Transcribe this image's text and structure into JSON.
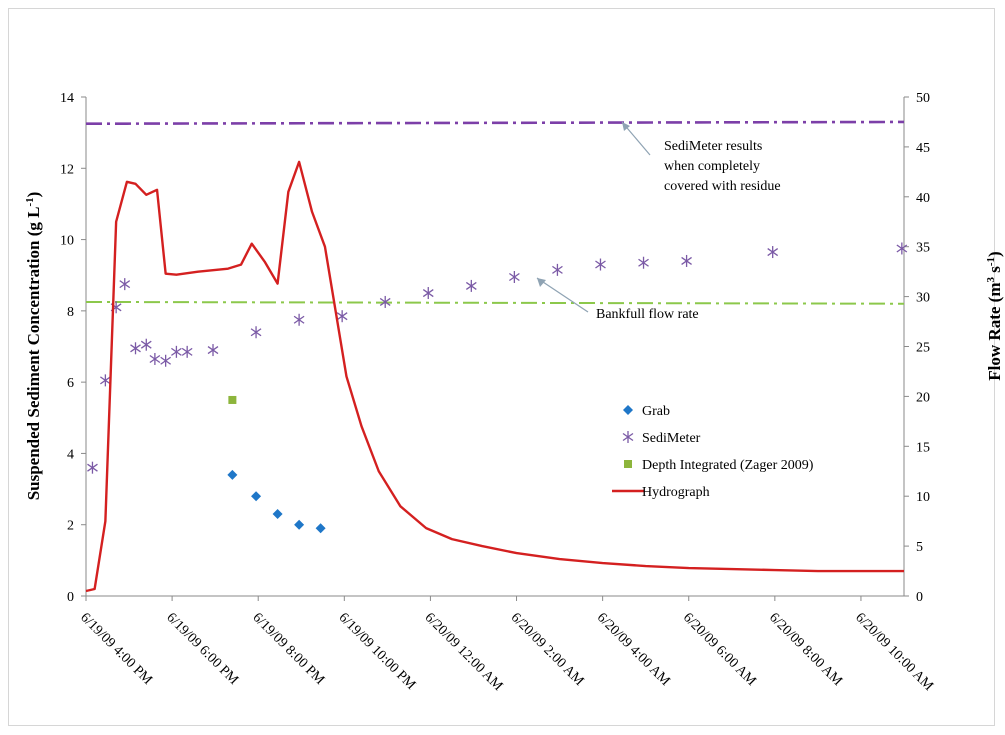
{
  "chart_data": {
    "type": "line",
    "xlabel": "",
    "y_left_label": "Suspended Sediment Concentration (g L⁻¹)",
    "y_right_label": "Flow Rate (m³ s⁻¹)",
    "ylim_left": [
      0,
      14
    ],
    "ylim_right": [
      0,
      50
    ],
    "y_left_ticks": [
      0,
      2,
      4,
      6,
      8,
      10,
      12,
      14
    ],
    "y_right_ticks": [
      0,
      5,
      10,
      15,
      20,
      25,
      30,
      35,
      40,
      45,
      50
    ],
    "x_range_hours": [
      16,
      35
    ],
    "x_ticks": [
      {
        "h": 16,
        "label": "6/19/09 4:00 PM"
      },
      {
        "h": 18,
        "label": "6/19/09 6:00 PM"
      },
      {
        "h": 20,
        "label": "6/19/09 8:00 PM"
      },
      {
        "h": 22,
        "label": "6/19/09 10:00 PM"
      },
      {
        "h": 24,
        "label": "6/20/09 12:00 AM"
      },
      {
        "h": 26,
        "label": "6/20/09 2:00 AM"
      },
      {
        "h": 28,
        "label": "6/20/09 4:00 AM"
      },
      {
        "h": 30,
        "label": "6/20/09 6:00 AM"
      },
      {
        "h": 32,
        "label": "6/20/09 8:00 AM"
      },
      {
        "h": 34,
        "label": "6/20/09 10:00 AM"
      }
    ],
    "grid": false,
    "legend_position": "right-center",
    "series": [
      {
        "name": "Grab",
        "marker": "diamond",
        "axis": "left",
        "color": "#1f77c8",
        "points": [
          [
            19.4,
            3.4
          ],
          [
            19.95,
            2.8
          ],
          [
            20.45,
            2.3
          ],
          [
            20.95,
            2.0
          ],
          [
            21.45,
            1.9
          ]
        ]
      },
      {
        "name": "SediMeter",
        "marker": "asterisk",
        "axis": "left",
        "color": "#7b5aa6",
        "points": [
          [
            16.15,
            3.6
          ],
          [
            16.45,
            6.05
          ],
          [
            16.7,
            8.1
          ],
          [
            16.9,
            8.75
          ],
          [
            17.15,
            6.95
          ],
          [
            17.4,
            7.05
          ],
          [
            17.6,
            6.65
          ],
          [
            17.85,
            6.6
          ],
          [
            18.1,
            6.85
          ],
          [
            18.35,
            6.85
          ],
          [
            18.95,
            6.9
          ],
          [
            19.95,
            7.4
          ],
          [
            20.95,
            7.75
          ],
          [
            21.95,
            7.85
          ],
          [
            22.95,
            8.25
          ],
          [
            23.95,
            8.5
          ],
          [
            24.95,
            8.7
          ],
          [
            25.95,
            8.95
          ],
          [
            26.95,
            9.15
          ],
          [
            27.95,
            9.3
          ],
          [
            28.95,
            9.35
          ],
          [
            29.95,
            9.4
          ],
          [
            31.95,
            9.65
          ],
          [
            34.95,
            9.75
          ]
        ]
      },
      {
        "name": "Depth Integrated (Zager 2009)",
        "marker": "square",
        "axis": "left",
        "color": "#8db53c",
        "points": [
          [
            19.4,
            5.5
          ]
        ]
      },
      {
        "name": "Hydrograph",
        "marker": "none",
        "axis": "right",
        "color": "#d42020",
        "points": [
          [
            16.0,
            0.5
          ],
          [
            16.2,
            0.7
          ],
          [
            16.45,
            7.5
          ],
          [
            16.7,
            37.5
          ],
          [
            16.95,
            41.5
          ],
          [
            17.15,
            41.3
          ],
          [
            17.4,
            40.2
          ],
          [
            17.65,
            40.7
          ],
          [
            17.85,
            32.3
          ],
          [
            18.1,
            32.2
          ],
          [
            18.6,
            32.5
          ],
          [
            19.3,
            32.8
          ],
          [
            19.6,
            33.2
          ],
          [
            19.85,
            35.3
          ],
          [
            20.15,
            33.5
          ],
          [
            20.45,
            31.3
          ],
          [
            20.7,
            40.5
          ],
          [
            20.95,
            43.5
          ],
          [
            21.25,
            38.5
          ],
          [
            21.55,
            35.0
          ],
          [
            21.8,
            28.5
          ],
          [
            22.05,
            22.0
          ],
          [
            22.4,
            17.0
          ],
          [
            22.8,
            12.5
          ],
          [
            23.3,
            9.0
          ],
          [
            23.9,
            6.8
          ],
          [
            24.5,
            5.7
          ],
          [
            25.2,
            5.0
          ],
          [
            26.0,
            4.3
          ],
          [
            27.0,
            3.7
          ],
          [
            28.0,
            3.3
          ],
          [
            29.0,
            3.0
          ],
          [
            30.0,
            2.8
          ],
          [
            31.0,
            2.7
          ],
          [
            32.0,
            2.6
          ],
          [
            33.0,
            2.5
          ],
          [
            34.0,
            2.5
          ],
          [
            34.5,
            2.5
          ],
          [
            35.0,
            2.5
          ]
        ]
      },
      {
        "name": "SediMeter results when completely covered with residue",
        "line_style": "dash-dot",
        "axis": "left",
        "color": "#7c3fa8",
        "points": [
          [
            16.0,
            13.25
          ],
          [
            35.0,
            13.3
          ]
        ]
      },
      {
        "name": "Bankfull flow rate",
        "line_style": "dash-dot",
        "axis": "left",
        "color": "#8cc84b",
        "points": [
          [
            16.0,
            8.25
          ],
          [
            35.0,
            8.2
          ]
        ]
      }
    ],
    "annotations": [
      {
        "lines": [
          "SediMeter results",
          "when completely",
          "covered with residue"
        ],
        "target": "sedimeter-reference-line"
      },
      {
        "lines": [
          "Bankfull flow rate"
        ],
        "target": "bankfull-line"
      }
    ],
    "legend": [
      {
        "label": "Grab",
        "marker": "diamond",
        "color": "#1f77c8"
      },
      {
        "label": "SediMeter",
        "marker": "asterisk",
        "color": "#7b5aa6"
      },
      {
        "label": "Depth Integrated (Zager 2009)",
        "marker": "square",
        "color": "#8db53c"
      },
      {
        "label": "Hydrograph",
        "marker": "line",
        "color": "#d42020"
      }
    ]
  }
}
